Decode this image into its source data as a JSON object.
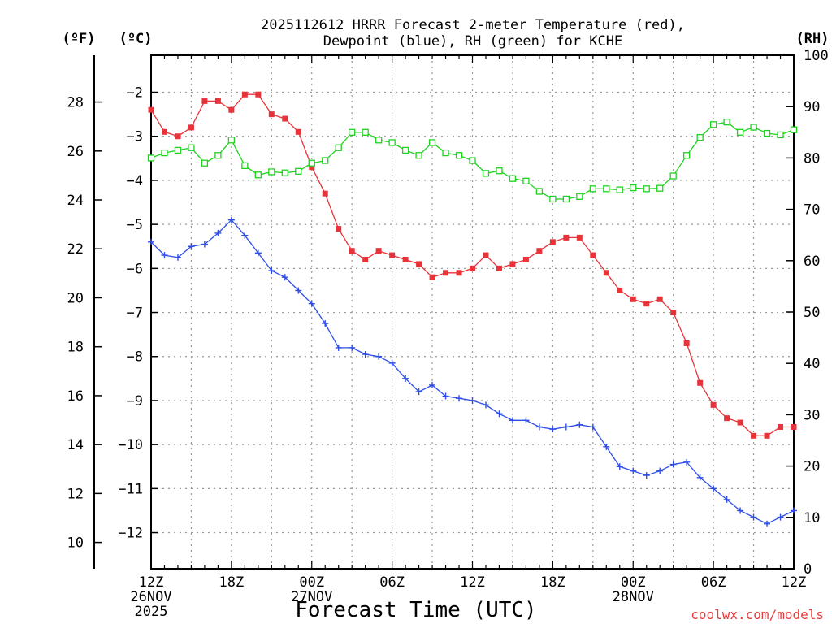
{
  "chart_data": {
    "type": "line",
    "title": "2025112612 HRRR Forecast 2-meter Temperature (red),",
    "title_line2": "Dewpoint (blue), RH (green) for KCHE",
    "xlabel": "Forecast Time (UTC)",
    "credit": "coolwx.com/models",
    "unit_f": "(ºF)",
    "unit_c": "(ºC)",
    "unit_rh": "(RH)",
    "x_hours": [
      0,
      1,
      2,
      3,
      4,
      5,
      6,
      7,
      8,
      9,
      10,
      11,
      12,
      13,
      14,
      15,
      16,
      17,
      18,
      19,
      20,
      21,
      22,
      23,
      24,
      25,
      26,
      27,
      28,
      29,
      30,
      31,
      32,
      33,
      34,
      35,
      36,
      37,
      38,
      39,
      40,
      41,
      42,
      43,
      44,
      45,
      46,
      47,
      48
    ],
    "x_ticks": [
      {
        "hour": 0,
        "label": "12Z",
        "date": "26NOV",
        "year": "2025"
      },
      {
        "hour": 6,
        "label": "18Z"
      },
      {
        "hour": 12,
        "label": "00Z",
        "date": "27NOV"
      },
      {
        "hour": 18,
        "label": "06Z"
      },
      {
        "hour": 24,
        "label": "12Z"
      },
      {
        "hour": 30,
        "label": "18Z"
      },
      {
        "hour": 36,
        "label": "00Z",
        "date": "28NOV"
      },
      {
        "hour": 42,
        "label": "06Z"
      },
      {
        "hour": 48,
        "label": "12Z"
      }
    ],
    "ylim_c": [
      -12.82,
      -1.16
    ],
    "ylim_rh": [
      0,
      100
    ],
    "y_ticks_c": [
      -2,
      -3,
      -4,
      -5,
      -6,
      -7,
      -8,
      -9,
      -10,
      -11,
      -12
    ],
    "y_ticks_f": [
      28,
      26,
      24,
      22,
      20,
      18,
      16,
      14,
      12,
      10
    ],
    "y_ticks_rh": [
      100,
      90,
      80,
      70,
      60,
      50,
      40,
      30,
      20,
      10,
      0
    ],
    "series": [
      {
        "name": "Temperature",
        "unit": "C",
        "color": "#e8333a",
        "marker": "filled-square",
        "values": [
          -2.4,
          -2.9,
          -3.0,
          -2.8,
          -2.2,
          -2.2,
          -2.4,
          -2.05,
          -2.05,
          -2.5,
          -2.6,
          -2.9,
          -3.7,
          -4.3,
          -5.1,
          -5.6,
          -5.8,
          -5.6,
          -5.7,
          -5.8,
          -5.9,
          -6.2,
          -6.1,
          -6.1,
          -6.0,
          -5.7,
          -6.0,
          -5.9,
          -5.8,
          -5.6,
          -5.4,
          -5.3,
          -5.3,
          -5.7,
          -6.1,
          -6.5,
          -6.7,
          -6.8,
          -6.7,
          -7.0,
          -7.7,
          -8.6,
          -9.1,
          -9.4,
          -9.5,
          -9.8,
          -9.8,
          -9.6,
          -9.6
        ]
      },
      {
        "name": "Dewpoint",
        "unit": "C",
        "color": "#2e4de8",
        "marker": "plus",
        "values": [
          -5.4,
          -5.7,
          -5.75,
          -5.5,
          -5.45,
          -5.2,
          -4.9,
          -5.25,
          -5.65,
          -6.05,
          -6.2,
          -6.5,
          -6.8,
          -7.25,
          -7.8,
          -7.8,
          -7.95,
          -8.0,
          -8.15,
          -8.5,
          -8.8,
          -8.65,
          -8.9,
          -8.95,
          -9.0,
          -9.1,
          -9.3,
          -9.45,
          -9.45,
          -9.6,
          -9.65,
          -9.6,
          -9.55,
          -9.6,
          -10.05,
          -10.5,
          -10.6,
          -10.7,
          -10.6,
          -10.45,
          -10.4,
          -10.75,
          -11.0,
          -11.25,
          -11.5,
          -11.65,
          -11.8,
          -11.65,
          -11.5
        ]
      },
      {
        "name": "RH",
        "unit": "%",
        "color": "#1fd21f",
        "marker": "open-square",
        "values": [
          80,
          81,
          81.5,
          82,
          79,
          80.5,
          83.5,
          78.5,
          76.7,
          77.3,
          77.1,
          77.4,
          79,
          79.5,
          82,
          85,
          85,
          83.5,
          83,
          81.5,
          80.5,
          83,
          81,
          80.5,
          79.5,
          77,
          77.5,
          76,
          75.5,
          73.5,
          72,
          72,
          72.5,
          74,
          74,
          73.8,
          74.2,
          74,
          74.1,
          76.5,
          80.5,
          84,
          86.5,
          87,
          85,
          86,
          84.8,
          84.5,
          85.5
        ]
      }
    ]
  }
}
